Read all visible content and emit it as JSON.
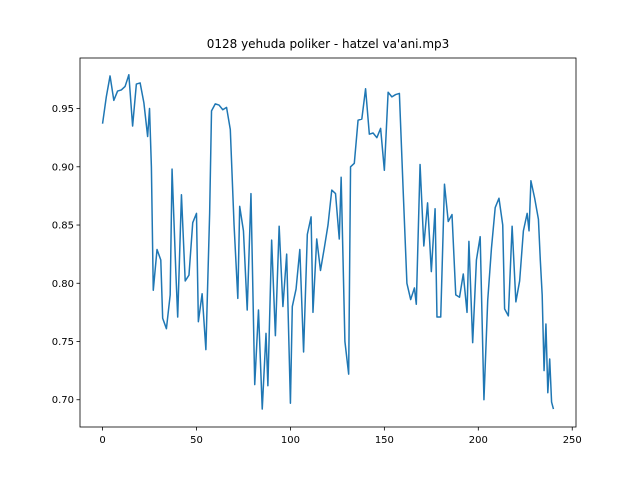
{
  "chart_data": {
    "type": "line",
    "title": "0128 yehuda poliker - hatzel va'ani.mp3",
    "x": [
      0,
      2,
      4,
      6,
      8,
      10,
      12,
      14,
      16,
      18,
      20,
      22,
      24,
      25,
      26,
      27,
      29,
      31,
      32,
      34,
      36,
      37,
      39,
      40,
      42,
      44,
      46,
      48,
      50,
      51,
      53,
      55,
      57,
      58,
      60,
      62,
      64,
      66,
      68,
      70,
      72,
      73,
      75,
      77,
      79,
      81,
      83,
      85,
      87,
      88,
      90,
      92,
      94,
      96,
      98,
      100,
      101,
      103,
      105,
      107,
      109,
      111,
      112,
      114,
      116,
      118,
      120,
      122,
      124,
      126,
      127,
      129,
      131,
      132,
      134,
      136,
      138,
      140,
      142,
      144,
      146,
      148,
      150,
      152,
      154,
      156,
      158,
      160,
      162,
      164,
      166,
      167,
      169,
      171,
      173,
      175,
      177,
      178,
      180,
      182,
      184,
      186,
      188,
      190,
      192,
      194,
      195,
      197,
      199,
      201,
      203,
      205,
      207,
      209,
      211,
      213,
      214,
      216,
      218,
      220,
      222,
      224,
      226,
      227,
      228,
      230,
      232,
      233,
      234,
      235,
      236,
      237,
      238,
      239,
      240
    ],
    "series": [
      {
        "color": "#1f77b4",
        "values": [
          0.937,
          0.96,
          0.978,
          0.957,
          0.965,
          0.966,
          0.969,
          0.979,
          0.935,
          0.971,
          0.972,
          0.955,
          0.926,
          0.95,
          0.9,
          0.794,
          0.829,
          0.82,
          0.77,
          0.761,
          0.79,
          0.898,
          0.81,
          0.771,
          0.876,
          0.802,
          0.807,
          0.852,
          0.86,
          0.767,
          0.791,
          0.743,
          0.86,
          0.948,
          0.954,
          0.953,
          0.949,
          0.951,
          0.932,
          0.85,
          0.787,
          0.866,
          0.845,
          0.777,
          0.877,
          0.713,
          0.777,
          0.692,
          0.757,
          0.712,
          0.837,
          0.755,
          0.849,
          0.78,
          0.825,
          0.697,
          0.78,
          0.795,
          0.829,
          0.741,
          0.842,
          0.857,
          0.775,
          0.838,
          0.811,
          0.83,
          0.85,
          0.88,
          0.877,
          0.838,
          0.891,
          0.75,
          0.722,
          0.9,
          0.903,
          0.94,
          0.941,
          0.967,
          0.928,
          0.929,
          0.925,
          0.933,
          0.897,
          0.964,
          0.96,
          0.962,
          0.963,
          0.88,
          0.8,
          0.786,
          0.796,
          0.782,
          0.902,
          0.832,
          0.869,
          0.81,
          0.864,
          0.771,
          0.771,
          0.885,
          0.853,
          0.859,
          0.79,
          0.788,
          0.808,
          0.775,
          0.836,
          0.749,
          0.82,
          0.84,
          0.7,
          0.785,
          0.83,
          0.865,
          0.873,
          0.85,
          0.778,
          0.772,
          0.849,
          0.784,
          0.802,
          0.845,
          0.86,
          0.845,
          0.888,
          0.873,
          0.855,
          0.82,
          0.79,
          0.725,
          0.765,
          0.706,
          0.735,
          0.698,
          0.692
        ]
      }
    ],
    "xlim": [
      -12,
      252
    ],
    "xticks": [
      0,
      50,
      100,
      150,
      200,
      250
    ],
    "ylim": [
      0.6766,
      0.9934
    ],
    "yticks": [
      {
        "value": 0.7,
        "label": "0.70"
      },
      {
        "value": 0.75,
        "label": "0.75"
      },
      {
        "value": 0.8,
        "label": "0.80"
      },
      {
        "value": 0.85,
        "label": "0.85"
      },
      {
        "value": 0.9,
        "label": "0.90"
      },
      {
        "value": 0.95,
        "label": "0.95"
      }
    ]
  }
}
